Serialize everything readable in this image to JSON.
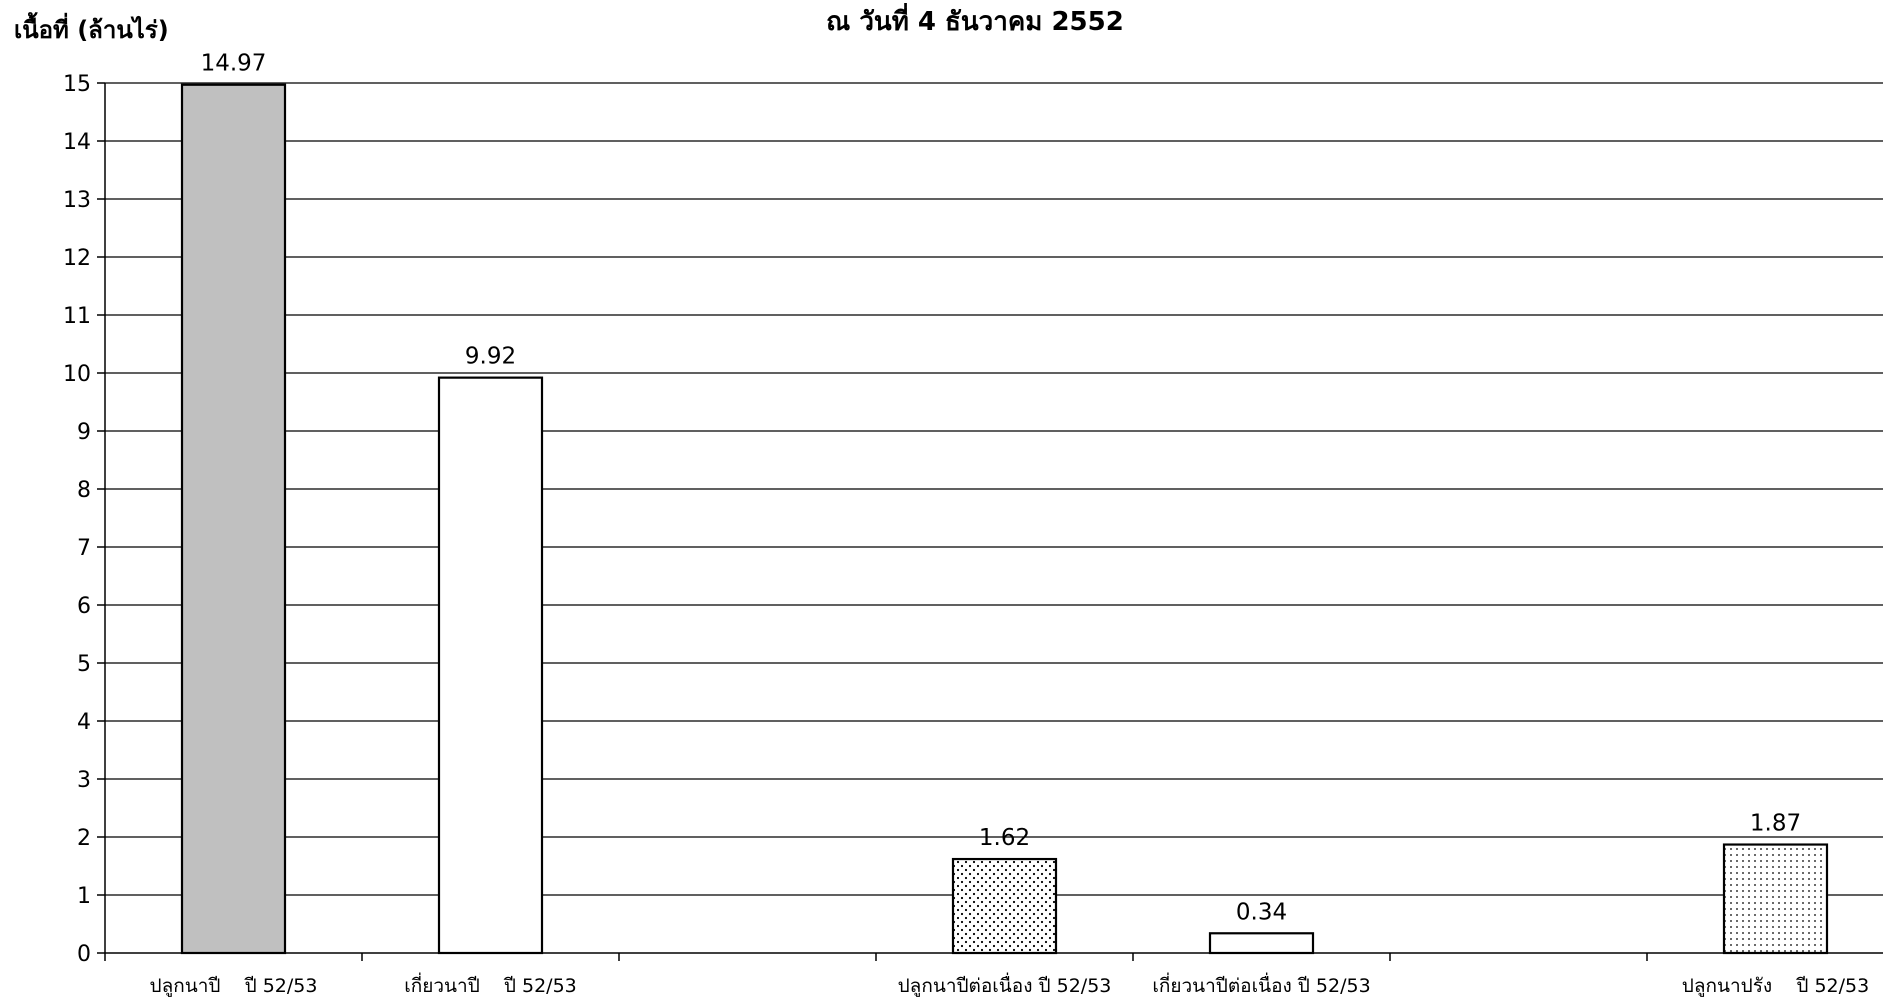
{
  "chart_data": {
    "type": "bar",
    "title": "ณ วันที่ 4 ธันวาคม 2552",
    "ylabel": "เนื้อที่ (ล้านไร่)",
    "xlabel": "",
    "ylim": [
      0,
      15
    ],
    "yticks": [
      0,
      1,
      2,
      3,
      4,
      5,
      6,
      7,
      8,
      9,
      10,
      11,
      12,
      13,
      14,
      15
    ],
    "grid": true,
    "legend": "none",
    "slots": 7,
    "categories": [
      "ปลูกนาปี    ปี 52/53",
      "เกี่ยวนาปี    ปี 52/53",
      "",
      "ปลูกนาปีต่อเนื่อง ปี 52/53",
      "เกี่ยวนาปีต่อเนื่อง ปี 52/53",
      "",
      "ปลูกนาปรัง    ปี 52/53"
    ],
    "values": [
      14.97,
      9.92,
      null,
      1.62,
      0.34,
      null,
      1.87
    ],
    "data_labels": [
      "14.97",
      "9.92",
      "",
      "1.62",
      "0.34",
      "",
      "1.87"
    ],
    "colors": {
      "planting_main": "#c0c0c0",
      "harvest": "#ffffff",
      "outline": "#000000",
      "gridline": "#000000"
    },
    "fills": [
      "gray",
      "white",
      "",
      "pattern-dense",
      "white",
      "",
      "pattern-dots"
    ]
  }
}
